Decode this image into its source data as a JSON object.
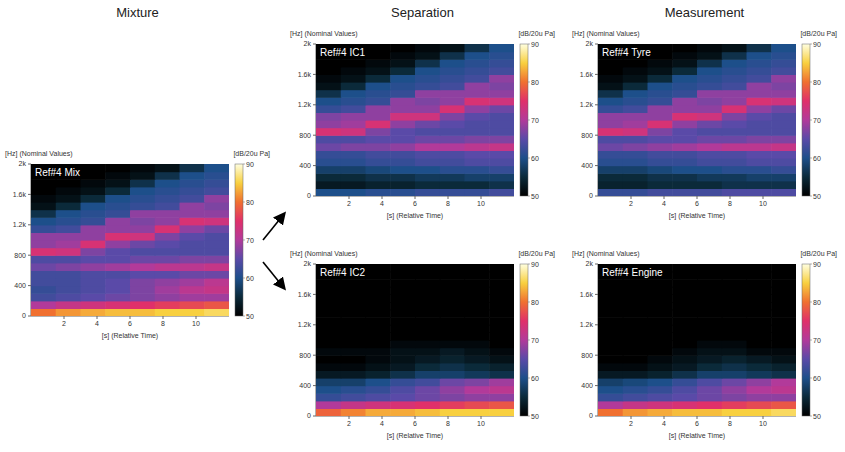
{
  "columns": [
    "Mixture",
    "Separation",
    "Measurement"
  ],
  "chart_data": [
    {
      "type": "heatmap",
      "title": "Ref#4 Mix",
      "x_label": "[s] (Relative Time)",
      "y_label": "[Hz] (Nominal Values)",
      "xlim": [
        0,
        12
      ],
      "xticks": [
        2,
        4,
        6,
        8,
        10
      ],
      "ylim": [
        0,
        2000
      ],
      "yticks": [
        0,
        400,
        800,
        {
          "value": 1200,
          "label": "1.2k"
        },
        {
          "value": 1600,
          "label": "1.6k"
        },
        {
          "value": 2000,
          "label": "2k"
        }
      ],
      "x": [
        0.75,
        2.25,
        3.75,
        5.25,
        6.75,
        8.25,
        9.75,
        11.25
      ],
      "y": [
        50,
        150,
        250,
        350,
        450,
        550,
        650,
        750,
        850,
        950,
        1050,
        1150,
        1250,
        1350,
        1450,
        1550,
        1650,
        1750,
        1850,
        1950
      ],
      "cells": [
        [
          80,
          82,
          83,
          84,
          84,
          85,
          85,
          86
        ],
        [
          70,
          72,
          73,
          74,
          75,
          76,
          77,
          78
        ],
        [
          63,
          64,
          65,
          66,
          67,
          68,
          69,
          69
        ],
        [
          62,
          63,
          64,
          65,
          67,
          69,
          71,
          72
        ],
        [
          63,
          63,
          64,
          65,
          67,
          68,
          69,
          71
        ],
        [
          63,
          63,
          64,
          64,
          65,
          65,
          66,
          66
        ],
        [
          66,
          67,
          68,
          69,
          70,
          71,
          71,
          72
        ],
        [
          64,
          64,
          65,
          65,
          66,
          66,
          67,
          67
        ],
        [
          74,
          73,
          67,
          65,
          64,
          64,
          64,
          64
        ],
        [
          68,
          69,
          74,
          68,
          66,
          65,
          64,
          64
        ],
        [
          68,
          68,
          68,
          74,
          73,
          67,
          65,
          64
        ],
        [
          62,
          63,
          68,
          68,
          68,
          74,
          68,
          66
        ],
        [
          60,
          61,
          62,
          68,
          67,
          68,
          74,
          73
        ],
        [
          56,
          60,
          61,
          62,
          68,
          68,
          68,
          68
        ],
        [
          52,
          55,
          60,
          61,
          62,
          63,
          68,
          67
        ],
        [
          51,
          52,
          55,
          60,
          61,
          62,
          63,
          68
        ],
        [
          50,
          51,
          52,
          55,
          60,
          61,
          62,
          63
        ],
        [
          50,
          50,
          51,
          52,
          56,
          60,
          61,
          62
        ],
        [
          50,
          50,
          50,
          51,
          52,
          56,
          60,
          61
        ],
        [
          50,
          50,
          50,
          50,
          51,
          52,
          56,
          60
        ]
      ],
      "colorbar": {
        "label": "[dB/20u Pa]",
        "range": [
          50,
          90
        ],
        "ticks": [
          50,
          60,
          70,
          80,
          90
        ]
      }
    },
    {
      "type": "heatmap",
      "title": "Ref#4 IC1",
      "x_label": "[s] (Relative Time)",
      "y_label": "[Hz] (Nominal Values)",
      "xlim": [
        0,
        12
      ],
      "xticks": [
        2,
        4,
        6,
        8,
        10
      ],
      "ylim": [
        0,
        2000
      ],
      "yticks": [
        0,
        400,
        800,
        {
          "value": 1200,
          "label": "1.2k"
        },
        {
          "value": 1600,
          "label": "1.6k"
        },
        {
          "value": 2000,
          "label": "2k"
        }
      ],
      "x": [
        0.75,
        2.25,
        3.75,
        5.25,
        6.75,
        8.25,
        9.75,
        11.25
      ],
      "y": [
        50,
        150,
        250,
        350,
        450,
        550,
        650,
        750,
        850,
        950,
        1050,
        1150,
        1250,
        1350,
        1450,
        1550,
        1650,
        1750,
        1850,
        1950
      ],
      "cells": [
        [
          60,
          60,
          61,
          61,
          62,
          62,
          62,
          63
        ],
        [
          53,
          53,
          54,
          54,
          55,
          55,
          55,
          56
        ],
        [
          55,
          55,
          56,
          56,
          57,
          57,
          58,
          58
        ],
        [
          58,
          58,
          59,
          60,
          60,
          61,
          61,
          62
        ],
        [
          61,
          61,
          62,
          62,
          63,
          63,
          64,
          64
        ],
        [
          62,
          62,
          63,
          63,
          64,
          64,
          65,
          65
        ],
        [
          66,
          67,
          67,
          68,
          70,
          70,
          71,
          72
        ],
        [
          64,
          64,
          65,
          65,
          66,
          66,
          67,
          67
        ],
        [
          74,
          73,
          67,
          65,
          64,
          64,
          64,
          64
        ],
        [
          68,
          69,
          74,
          68,
          66,
          65,
          64,
          64
        ],
        [
          67,
          68,
          68,
          73,
          73,
          67,
          65,
          64
        ],
        [
          62,
          63,
          68,
          68,
          68,
          74,
          68,
          66
        ],
        [
          60,
          61,
          62,
          68,
          67,
          68,
          74,
          73
        ],
        [
          56,
          60,
          61,
          62,
          68,
          68,
          68,
          68
        ],
        [
          52,
          55,
          60,
          61,
          62,
          63,
          68,
          67
        ],
        [
          51,
          52,
          55,
          60,
          61,
          62,
          63,
          68
        ],
        [
          50,
          51,
          52,
          55,
          60,
          61,
          62,
          63
        ],
        [
          50,
          50,
          51,
          52,
          56,
          60,
          61,
          62
        ],
        [
          50,
          50,
          50,
          51,
          52,
          56,
          60,
          61
        ],
        [
          50,
          50,
          50,
          50,
          51,
          52,
          56,
          60
        ]
      ],
      "colorbar": {
        "label": "[dB/20u Pa]",
        "range": [
          50,
          90
        ],
        "ticks": [
          50,
          60,
          70,
          80,
          90
        ]
      }
    },
    {
      "type": "heatmap",
      "title": "Ref#4 IC2",
      "x_label": "[s] (Relative Time)",
      "y_label": "[Hz] (Nominal Values)",
      "xlim": [
        0,
        12
      ],
      "xticks": [
        2,
        4,
        6,
        8,
        10
      ],
      "ylim": [
        0,
        2000
      ],
      "yticks": [
        0,
        400,
        800,
        {
          "value": 1200,
          "label": "1.2k"
        },
        {
          "value": 1600,
          "label": "1.6k"
        },
        {
          "value": 2000,
          "label": "2k"
        }
      ],
      "x": [
        0.75,
        2.25,
        3.75,
        5.25,
        6.75,
        8.25,
        9.75,
        11.25
      ],
      "y": [
        50,
        150,
        250,
        350,
        450,
        550,
        650,
        750,
        850,
        950,
        1050,
        1150,
        1250,
        1350,
        1450,
        1550,
        1650,
        1750,
        1850,
        1950
      ],
      "cells": [
        [
          79,
          81,
          83,
          83,
          84,
          85,
          85,
          85
        ],
        [
          70,
          72,
          73,
          74,
          75,
          76,
          77,
          78
        ],
        [
          62,
          63,
          64,
          65,
          66,
          67,
          68,
          68
        ],
        [
          60,
          61,
          62,
          64,
          66,
          68,
          70,
          71
        ],
        [
          58,
          58,
          60,
          62,
          63,
          66,
          67,
          69
        ],
        [
          53,
          53,
          54,
          56,
          58,
          58,
          57,
          56
        ],
        [
          51,
          51,
          52,
          53,
          55,
          56,
          55,
          54
        ],
        [
          50,
          50,
          51,
          52,
          53,
          54,
          53,
          52
        ],
        [
          51,
          51,
          51,
          52,
          52,
          53,
          52,
          51
        ],
        [
          50,
          50,
          50,
          51,
          51,
          51,
          51,
          50
        ],
        [
          50,
          50,
          50,
          50,
          50,
          50,
          50,
          50
        ],
        [
          50,
          50,
          50,
          50,
          50,
          50,
          50,
          50
        ],
        [
          50,
          50,
          50,
          50,
          50,
          50,
          50,
          50
        ],
        [
          50,
          50,
          50,
          50,
          50,
          50,
          50,
          50
        ],
        [
          50,
          50,
          50,
          50,
          50,
          50,
          50,
          50
        ],
        [
          50,
          50,
          50,
          50,
          50,
          50,
          50,
          50
        ],
        [
          50,
          50,
          50,
          50,
          50,
          50,
          50,
          50
        ],
        [
          50,
          50,
          50,
          50,
          50,
          50,
          50,
          50
        ],
        [
          50,
          50,
          50,
          50,
          50,
          50,
          50,
          50
        ],
        [
          50,
          50,
          50,
          50,
          50,
          50,
          50,
          50
        ]
      ],
      "colorbar": {
        "label": "[dB/20u Pa]",
        "range": [
          50,
          90
        ],
        "ticks": [
          50,
          60,
          70,
          80,
          90
        ]
      }
    },
    {
      "type": "heatmap",
      "title": "Ref#4 Tyre",
      "x_label": "[s] (Relative Time)",
      "y_label": "[Hz] (Nominal Values)",
      "xlim": [
        0,
        12
      ],
      "xticks": [
        2,
        4,
        6,
        8,
        10
      ],
      "ylim": [
        0,
        2000
      ],
      "yticks": [
        0,
        400,
        800,
        {
          "value": 1200,
          "label": "1.2k"
        },
        {
          "value": 1600,
          "label": "1.6k"
        },
        {
          "value": 2000,
          "label": "2k"
        }
      ],
      "x": [
        0.75,
        2.25,
        3.75,
        5.25,
        6.75,
        8.25,
        9.75,
        11.25
      ],
      "y": [
        50,
        150,
        250,
        350,
        450,
        550,
        650,
        750,
        850,
        950,
        1050,
        1150,
        1250,
        1350,
        1450,
        1550,
        1650,
        1750,
        1850,
        1950
      ],
      "cells": [
        [
          62,
          62,
          63,
          63,
          63,
          64,
          64,
          64
        ],
        [
          54,
          54,
          55,
          55,
          55,
          56,
          56,
          56
        ],
        [
          55,
          55,
          56,
          56,
          57,
          57,
          58,
          58
        ],
        [
          58,
          58,
          59,
          60,
          60,
          61,
          61,
          62
        ],
        [
          61,
          61,
          62,
          62,
          63,
          63,
          64,
          64
        ],
        [
          62,
          62,
          63,
          63,
          64,
          64,
          65,
          65
        ],
        [
          66,
          67,
          68,
          69,
          70,
          71,
          71,
          72
        ],
        [
          64,
          64,
          65,
          65,
          66,
          66,
          67,
          67
        ],
        [
          74,
          73,
          67,
          65,
          64,
          64,
          64,
          64
        ],
        [
          68,
          69,
          74,
          68,
          66,
          65,
          64,
          64
        ],
        [
          68,
          68,
          68,
          74,
          73,
          67,
          65,
          64
        ],
        [
          62,
          63,
          68,
          68,
          68,
          74,
          68,
          66
        ],
        [
          60,
          61,
          62,
          68,
          67,
          68,
          74,
          73
        ],
        [
          56,
          60,
          61,
          62,
          68,
          68,
          68,
          68
        ],
        [
          52,
          55,
          60,
          61,
          62,
          63,
          68,
          67
        ],
        [
          51,
          52,
          55,
          60,
          61,
          62,
          63,
          68
        ],
        [
          50,
          51,
          52,
          55,
          60,
          61,
          62,
          63
        ],
        [
          50,
          50,
          51,
          52,
          56,
          60,
          61,
          62
        ],
        [
          50,
          50,
          50,
          51,
          52,
          56,
          60,
          61
        ],
        [
          50,
          50,
          50,
          50,
          51,
          52,
          56,
          60
        ]
      ],
      "colorbar": {
        "label": "[dB/20u Pa]",
        "range": [
          50,
          90
        ],
        "ticks": [
          50,
          60,
          70,
          80,
          90
        ]
      }
    },
    {
      "type": "heatmap",
      "title": "Ref#4 Engine",
      "x_label": "[s] (Relative Time)",
      "y_label": "[Hz] (Nominal Values)",
      "xlim": [
        0,
        12
      ],
      "xticks": [
        2,
        4,
        6,
        8,
        10
      ],
      "ylim": [
        0,
        2000
      ],
      "yticks": [
        0,
        400,
        800,
        {
          "value": 1200,
          "label": "1.2k"
        },
        {
          "value": 1600,
          "label": "1.6k"
        },
        {
          "value": 2000,
          "label": "2k"
        }
      ],
      "x": [
        0.75,
        2.25,
        3.75,
        5.25,
        6.75,
        8.25,
        9.75,
        11.25
      ],
      "y": [
        50,
        150,
        250,
        350,
        450,
        550,
        650,
        750,
        850,
        950,
        1050,
        1150,
        1250,
        1350,
        1450,
        1550,
        1650,
        1750,
        1850,
        1950
      ],
      "cells": [
        [
          80,
          82,
          83,
          84,
          84,
          85,
          85,
          86
        ],
        [
          70,
          72,
          73,
          74,
          75,
          76,
          77,
          78
        ],
        [
          62,
          63,
          64,
          65,
          66,
          67,
          68,
          68
        ],
        [
          60,
          61,
          62,
          64,
          66,
          68,
          70,
          71
        ],
        [
          58,
          59,
          60,
          62,
          64,
          66,
          68,
          70
        ],
        [
          53,
          53,
          54,
          56,
          58,
          58,
          57,
          56
        ],
        [
          51,
          51,
          52,
          53,
          55,
          56,
          55,
          54
        ],
        [
          50,
          50,
          51,
          52,
          53,
          54,
          53,
          52
        ],
        [
          50,
          50,
          50,
          51,
          52,
          52,
          51,
          51
        ],
        [
          50,
          50,
          50,
          50,
          51,
          51,
          50,
          50
        ],
        [
          50,
          50,
          50,
          50,
          50,
          50,
          50,
          50
        ],
        [
          50,
          50,
          50,
          50,
          50,
          50,
          50,
          50
        ],
        [
          50,
          50,
          50,
          50,
          50,
          50,
          50,
          50
        ],
        [
          50,
          50,
          50,
          50,
          50,
          50,
          50,
          50
        ],
        [
          50,
          50,
          50,
          50,
          50,
          50,
          50,
          50
        ],
        [
          50,
          50,
          50,
          50,
          50,
          50,
          50,
          50
        ],
        [
          50,
          50,
          50,
          50,
          50,
          50,
          50,
          50
        ],
        [
          50,
          50,
          50,
          50,
          50,
          50,
          50,
          50
        ],
        [
          50,
          50,
          50,
          50,
          50,
          50,
          50,
          50
        ],
        [
          50,
          50,
          50,
          50,
          50,
          50,
          50,
          50
        ]
      ],
      "colorbar": {
        "label": "[dB/20u Pa]",
        "range": [
          50,
          90
        ],
        "ticks": [
          50,
          60,
          70,
          80,
          90
        ]
      }
    }
  ]
}
